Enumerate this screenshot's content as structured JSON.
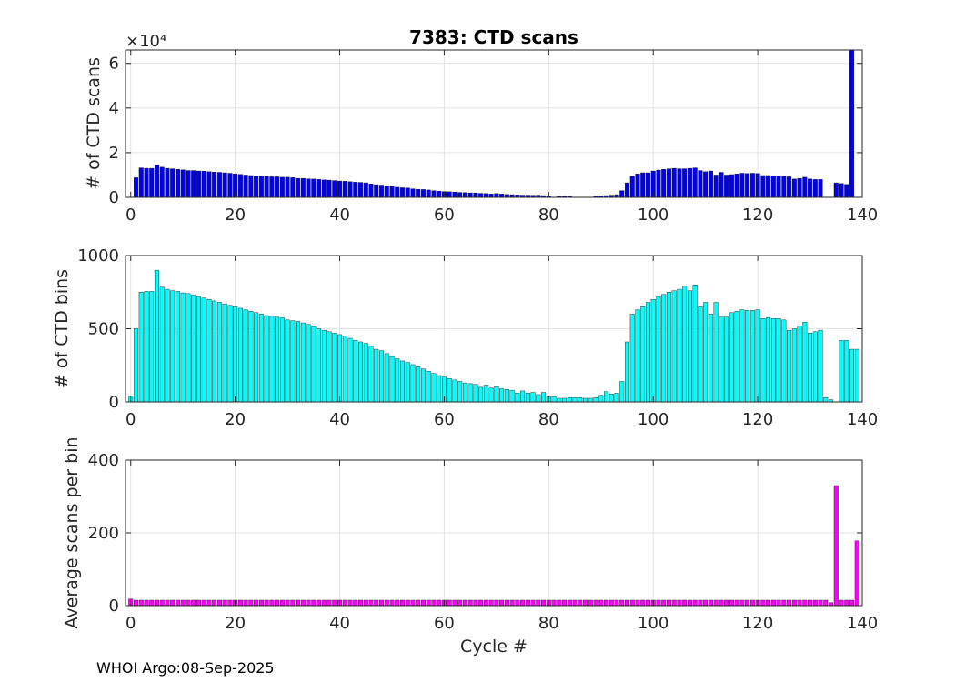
{
  "chart_data": [
    {
      "type": "bar",
      "title": "7383: CTD scans",
      "xlabel": "",
      "ylabel": "# of CTD scans",
      "y_exponent_label": "×10⁴",
      "xlim": [
        -1,
        140
      ],
      "ylim": [
        0,
        6.6
      ],
      "xticks": [
        0,
        20,
        40,
        60,
        80,
        100,
        120,
        140
      ],
      "yticks": [
        0,
        2,
        4,
        6
      ],
      "xtick_labels": [
        "0",
        "20",
        "40",
        "60",
        "80",
        "100",
        "120",
        "140"
      ],
      "ytick_labels": [
        "0",
        "2",
        "4",
        "6"
      ],
      "color": "#0000ee",
      "grid": true,
      "x_start": 0,
      "values": [
        0,
        0.88,
        1.32,
        1.3,
        1.3,
        1.45,
        1.35,
        1.3,
        1.28,
        1.25,
        1.23,
        1.2,
        1.2,
        1.18,
        1.17,
        1.15,
        1.13,
        1.12,
        1.1,
        1.08,
        1.05,
        1.03,
        1.0,
        0.98,
        0.95,
        0.95,
        0.93,
        0.92,
        0.92,
        0.9,
        0.9,
        0.88,
        0.85,
        0.85,
        0.83,
        0.82,
        0.8,
        0.78,
        0.77,
        0.75,
        0.73,
        0.72,
        0.7,
        0.68,
        0.67,
        0.65,
        0.6,
        0.57,
        0.55,
        0.52,
        0.48,
        0.45,
        0.43,
        0.42,
        0.38,
        0.36,
        0.35,
        0.33,
        0.3,
        0.28,
        0.26,
        0.25,
        0.24,
        0.22,
        0.21,
        0.2,
        0.2,
        0.18,
        0.17,
        0.15,
        0.17,
        0.15,
        0.13,
        0.12,
        0.11,
        0.1,
        0.1,
        0.09,
        0.1,
        0.08,
        0.06,
        0,
        0.04,
        0.04,
        0.04,
        0,
        0,
        0,
        0,
        0.05,
        0.06,
        0.08,
        0.1,
        0.12,
        0.3,
        0.65,
        0.95,
        1.05,
        1.1,
        1.1,
        1.18,
        1.22,
        1.25,
        1.28,
        1.3,
        1.28,
        1.28,
        1.3,
        1.32,
        1.2,
        1.15,
        1.18,
        1.0,
        1.12,
        1.0,
        1.02,
        1.05,
        1.08,
        1.07,
        1.08,
        1.07,
        0.98,
        0.98,
        0.95,
        0.95,
        0.93,
        0.92,
        0.82,
        0.85,
        0.9,
        0.82,
        0.8,
        0.8,
        0,
        0,
        0.65,
        0.62,
        0.58,
        6.6
      ]
    },
    {
      "type": "bar",
      "title": "",
      "xlabel": "",
      "ylabel": "# of CTD bins",
      "xlim": [
        -1,
        140
      ],
      "ylim": [
        0,
        1000
      ],
      "xticks": [
        0,
        20,
        40,
        60,
        80,
        100,
        120,
        140
      ],
      "yticks": [
        0,
        500,
        1000
      ],
      "xtick_labels": [
        "0",
        "20",
        "40",
        "60",
        "80",
        "100",
        "120",
        "140"
      ],
      "ytick_labels": [
        "0",
        "500",
        "1000"
      ],
      "color": "#00ffff",
      "grid": true,
      "x_start": 0,
      "values": [
        40,
        500,
        750,
        755,
        755,
        900,
        785,
        770,
        760,
        755,
        745,
        740,
        730,
        720,
        710,
        700,
        690,
        680,
        670,
        660,
        650,
        640,
        630,
        620,
        610,
        600,
        590,
        585,
        580,
        575,
        560,
        555,
        550,
        540,
        530,
        515,
        500,
        490,
        480,
        470,
        460,
        450,
        435,
        420,
        410,
        400,
        380,
        360,
        350,
        330,
        310,
        295,
        280,
        270,
        255,
        240,
        225,
        210,
        195,
        180,
        170,
        160,
        150,
        140,
        130,
        125,
        120,
        100,
        115,
        95,
        105,
        90,
        85,
        80,
        60,
        75,
        60,
        65,
        50,
        65,
        35,
        35,
        25,
        25,
        30,
        30,
        30,
        25,
        25,
        30,
        45,
        70,
        55,
        60,
        140,
        410,
        600,
        630,
        650,
        680,
        700,
        720,
        735,
        750,
        760,
        770,
        790,
        760,
        800,
        650,
        680,
        600,
        680,
        580,
        580,
        610,
        620,
        630,
        625,
        625,
        630,
        570,
        575,
        570,
        570,
        560,
        490,
        500,
        520,
        545,
        470,
        480,
        490,
        30,
        15,
        0,
        420,
        420,
        360,
        360
      ]
    },
    {
      "type": "bar",
      "title": "",
      "xlabel": "Cycle #",
      "ylabel": "Average scans per bin",
      "xlim": [
        -1,
        140
      ],
      "ylim": [
        0,
        400
      ],
      "xticks": [
        0,
        20,
        40,
        60,
        80,
        100,
        120,
        140
      ],
      "yticks": [
        0,
        200,
        400
      ],
      "xtick_labels": [
        "0",
        "20",
        "40",
        "60",
        "80",
        "100",
        "120",
        "140"
      ],
      "ytick_labels": [
        "0",
        "200",
        "400"
      ],
      "color": "#ff00ff",
      "grid": true,
      "x_start": 0,
      "values": [
        18,
        15,
        15,
        15,
        15,
        15,
        15,
        15,
        15,
        15,
        15,
        15,
        15,
        15,
        15,
        15,
        15,
        15,
        15,
        15,
        15,
        15,
        15,
        15,
        15,
        15,
        15,
        15,
        15,
        15,
        15,
        15,
        15,
        15,
        15,
        15,
        15,
        15,
        15,
        15,
        15,
        15,
        15,
        15,
        15,
        15,
        15,
        15,
        15,
        15,
        15,
        15,
        15,
        15,
        15,
        15,
        15,
        15,
        15,
        15,
        15,
        15,
        15,
        15,
        15,
        15,
        15,
        15,
        15,
        15,
        15,
        15,
        15,
        15,
        15,
        15,
        15,
        15,
        15,
        15,
        15,
        15,
        15,
        15,
        15,
        15,
        15,
        15,
        15,
        15,
        15,
        15,
        15,
        15,
        15,
        15,
        15,
        15,
        15,
        15,
        15,
        15,
        15,
        15,
        15,
        15,
        15,
        15,
        15,
        15,
        15,
        15,
        15,
        15,
        15,
        15,
        15,
        15,
        15,
        15,
        15,
        15,
        15,
        15,
        15,
        15,
        15,
        15,
        15,
        15,
        15,
        15,
        15,
        15,
        8,
        330,
        15,
        15,
        15,
        178
      ]
    }
  ],
  "footer": "WHOI Argo:08-Sep-2025"
}
